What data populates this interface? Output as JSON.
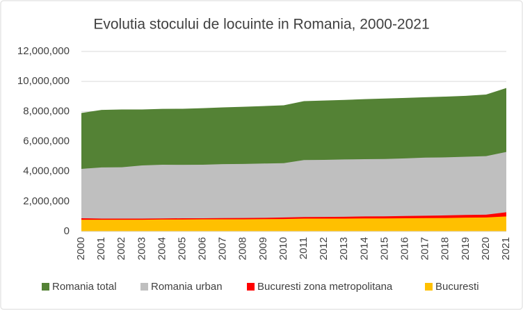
{
  "chart_data": {
    "type": "area",
    "title": "Evolutia stocului de locuinte in Romania, 2000-2021",
    "categories": [
      "2000",
      "2001",
      "2002",
      "2003",
      "2004",
      "2005",
      "2006",
      "2007",
      "2008",
      "2009",
      "2010",
      "2011",
      "2012",
      "2013",
      "2014",
      "2015",
      "2016",
      "2017",
      "2018",
      "2019",
      "2020",
      "2021"
    ],
    "series": [
      {
        "name": "Romania total",
        "color": "#548235",
        "values": [
          7900000,
          8100000,
          8130000,
          8130000,
          8170000,
          8180000,
          8220000,
          8270000,
          8310000,
          8360000,
          8410000,
          8690000,
          8730000,
          8770000,
          8820000,
          8860000,
          8900000,
          8950000,
          8990000,
          9040000,
          9130000,
          9560000
        ]
      },
      {
        "name": "Romania urban",
        "color": "#bfbfbf",
        "values": [
          4170000,
          4270000,
          4280000,
          4400000,
          4450000,
          4440000,
          4450000,
          4490000,
          4500000,
          4530000,
          4550000,
          4760000,
          4770000,
          4800000,
          4820000,
          4830000,
          4870000,
          4920000,
          4940000,
          4980000,
          5020000,
          5300000
        ]
      },
      {
        "name": "Bucuresti zona metropolitana",
        "color": "#ff0000",
        "values": [
          880000,
          860000,
          860000,
          860000,
          870000,
          880000,
          880000,
          890000,
          900000,
          910000,
          930000,
          960000,
          970000,
          980000,
          1000000,
          1010000,
          1030000,
          1050000,
          1070000,
          1100000,
          1120000,
          1280000
        ]
      },
      {
        "name": "Bucuresti",
        "color": "#ffc000",
        "values": [
          780000,
          780000,
          780000,
          780000,
          800000,
          800000,
          810000,
          810000,
          810000,
          820000,
          830000,
          860000,
          860000,
          860000,
          870000,
          870000,
          880000,
          890000,
          900000,
          920000,
          930000,
          1000000
        ]
      }
    ],
    "ylim": [
      0,
      12000000
    ],
    "yticks": [
      0,
      {
        "value": 2000000,
        "label": "2,000,000"
      },
      {
        "value": 4000000,
        "label": "4,000,000"
      },
      {
        "value": 6000000,
        "label": "6,000,000"
      },
      {
        "value": 8000000,
        "label": "8,000,000"
      },
      {
        "value": 10000000,
        "label": "10,000,000"
      },
      {
        "value": 12000000,
        "label": "12,000,000"
      }
    ],
    "legend": "bottom"
  }
}
